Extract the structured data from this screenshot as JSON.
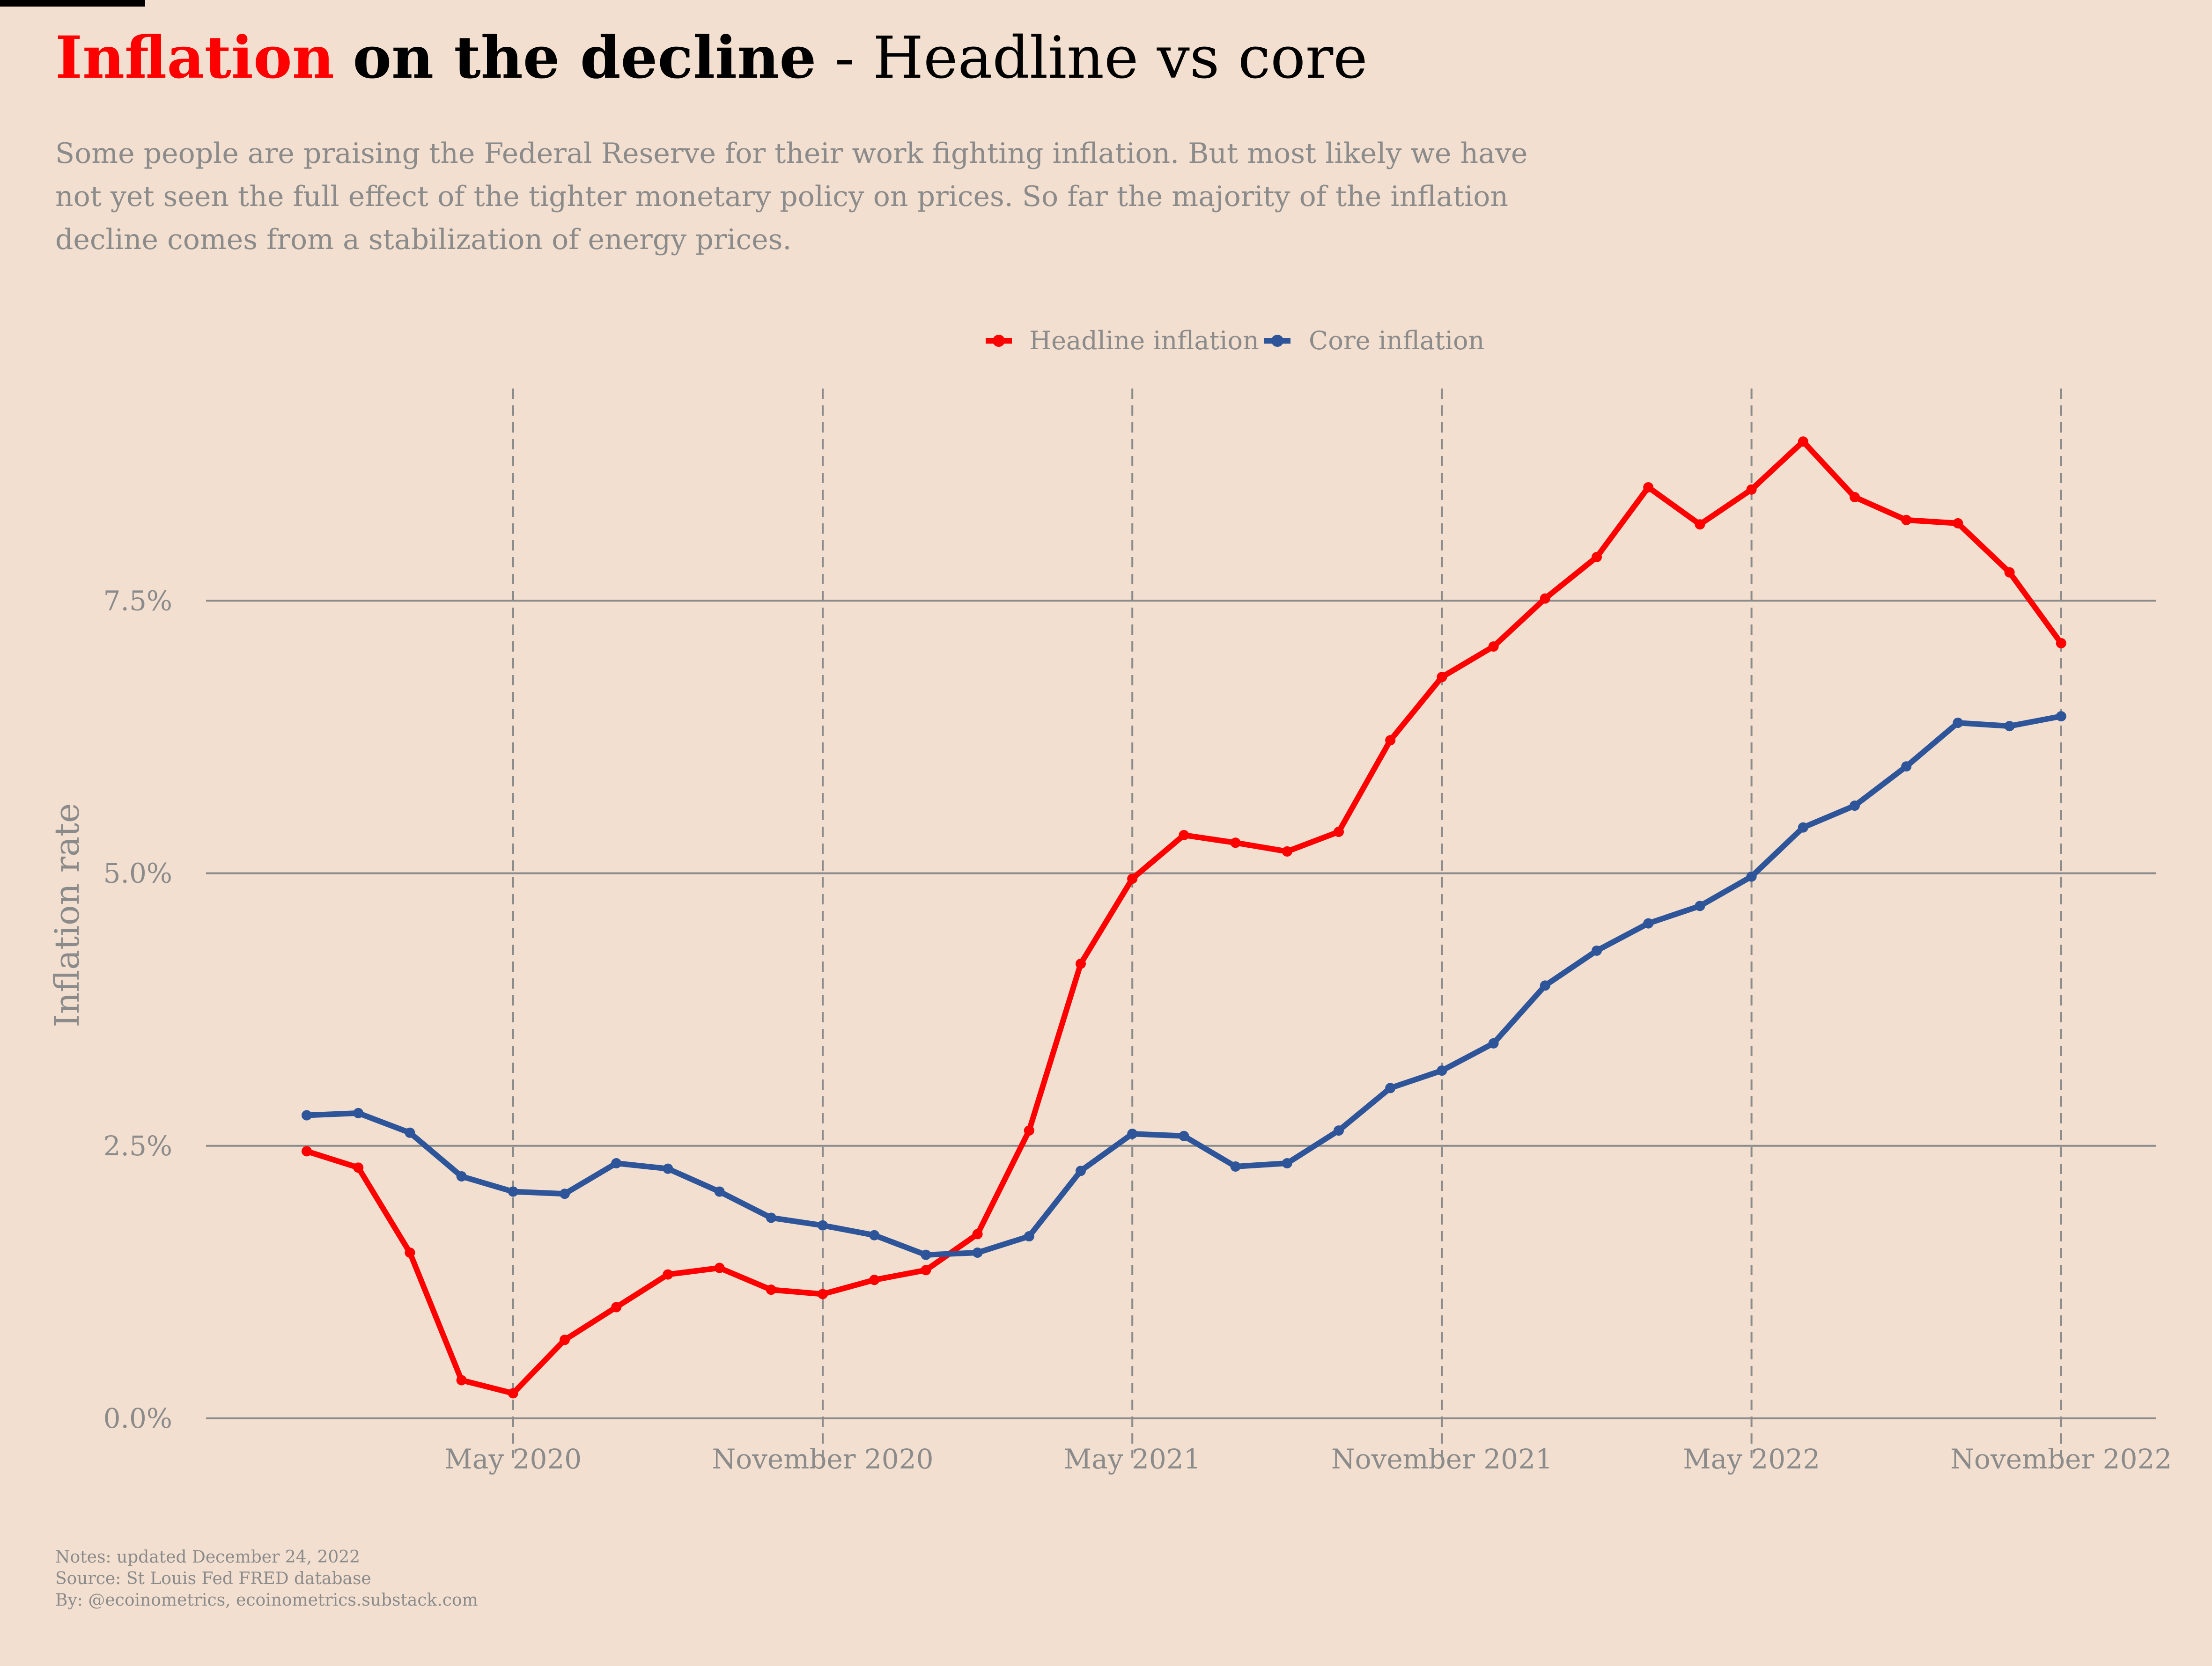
{
  "title": {
    "red_part": "Inflation",
    "bold_part": "on the decline",
    "rest": " - Headline vs core"
  },
  "subtitle": "Some people are praising the Federal Reserve for their work fighting inflation. But most likely we have not yet seen the full effect of the tighter monetary policy on prices. So far the majority of the inflation decline comes from a stabilization of energy prices.",
  "notes": [
    "Notes: updated December 24, 2022",
    "Source: St Louis Fed FRED database",
    "By: @ecoinometrics, ecoinometrics.substack.com"
  ],
  "colors": {
    "background": "#f2dfcf",
    "headline": "#ff0000",
    "core": "#2e5599",
    "grid": "#8b8b8b",
    "text_muted": "#8b8b8b"
  },
  "chart_data": {
    "type": "line",
    "title": "Inflation on the decline - Headline vs core",
    "xlabel": "",
    "ylabel": "Inflation rate",
    "x": [
      "2020-01",
      "2020-02",
      "2020-03",
      "2020-04",
      "2020-05",
      "2020-06",
      "2020-07",
      "2020-08",
      "2020-09",
      "2020-10",
      "2020-11",
      "2020-12",
      "2021-01",
      "2021-02",
      "2021-03",
      "2021-04",
      "2021-05",
      "2021-06",
      "2021-07",
      "2021-08",
      "2021-09",
      "2021-10",
      "2021-11",
      "2021-12",
      "2022-01",
      "2022-02",
      "2022-03",
      "2022-04",
      "2022-05",
      "2022-06",
      "2022-07",
      "2022-08",
      "2022-09",
      "2022-10",
      "2022-11"
    ],
    "x_ticks": [
      "May 2020",
      "November 2020",
      "May 2021",
      "November 2021",
      "May 2022",
      "November 2022"
    ],
    "x_tick_dates": [
      "2020-05",
      "2020-11",
      "2021-05",
      "2021-11",
      "2022-05",
      "2022-11"
    ],
    "y_ticks": [
      "0.0%",
      "2.5%",
      "5.0%",
      "7.5%"
    ],
    "y_tick_values": [
      0,
      2.5,
      5.0,
      7.5
    ],
    "ylim": [
      -0.3,
      9.3
    ],
    "grid": "horizontal solid at y ticks, vertical dashed at x ticks",
    "legend_position": "top-center",
    "series": [
      {
        "name": "Headline inflation",
        "color": "#ff0000",
        "values": [
          2.45,
          2.3,
          1.52,
          0.35,
          0.23,
          0.72,
          1.02,
          1.32,
          1.38,
          1.18,
          1.14,
          1.27,
          1.36,
          1.69,
          2.64,
          4.17,
          4.95,
          5.35,
          5.28,
          5.2,
          5.38,
          6.22,
          6.8,
          7.08,
          7.52,
          7.9,
          8.54,
          8.2,
          8.52,
          8.96,
          8.45,
          8.24,
          8.21,
          7.76,
          7.11
        ]
      },
      {
        "name": "Core inflation",
        "color": "#2e5599",
        "values": [
          2.78,
          2.8,
          2.62,
          2.22,
          2.08,
          2.06,
          2.34,
          2.29,
          2.08,
          1.84,
          1.77,
          1.68,
          1.5,
          1.52,
          1.67,
          2.27,
          2.61,
          2.59,
          2.31,
          2.34,
          2.64,
          3.03,
          3.19,
          3.44,
          3.97,
          4.29,
          4.54,
          4.7,
          4.97,
          5.42,
          5.62,
          5.98,
          6.38,
          6.35,
          6.44
        ]
      }
    ]
  }
}
